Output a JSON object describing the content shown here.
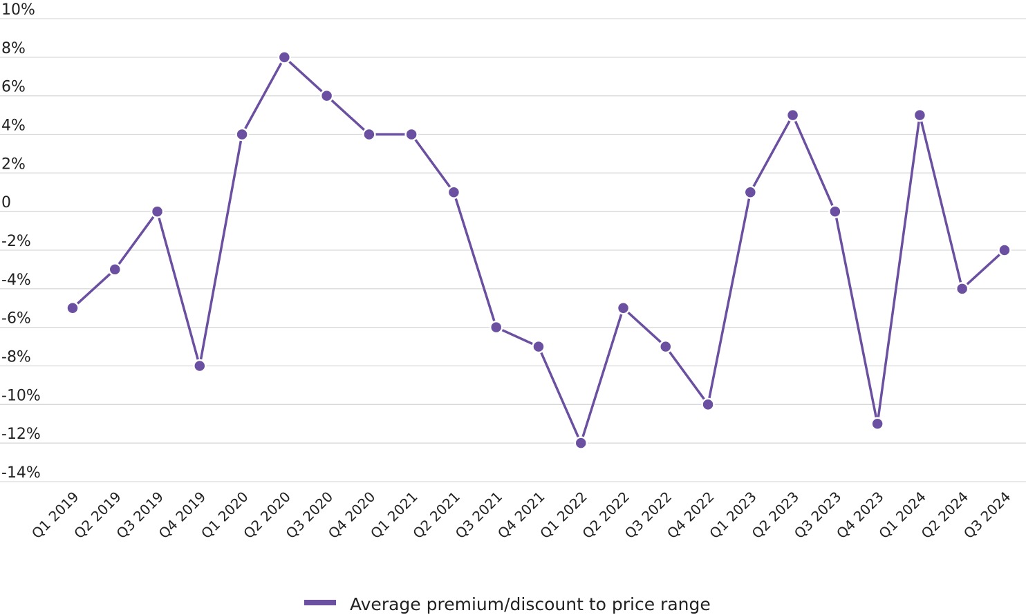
{
  "chart_data": {
    "type": "line",
    "categories": [
      "Q1 2019",
      "Q2 2019",
      "Q3 2019",
      "Q4 2019",
      "Q1 2020",
      "Q2 2020",
      "Q3 2020",
      "Q4 2020",
      "Q1 2021",
      "Q2 2021",
      "Q3 2021",
      "Q4 2021",
      "Q1 2022",
      "Q2 2022",
      "Q3 2022",
      "Q4 2022",
      "Q1 2023",
      "Q2 2023",
      "Q3 2023",
      "Q4 2023",
      "Q1 2024",
      "Q2 2024",
      "Q3 2024"
    ],
    "series": [
      {
        "name": "Average premium/discount to price range",
        "values": [
          -5,
          -3,
          0,
          -8,
          4,
          8,
          6,
          4,
          4,
          1,
          -6,
          -7,
          -12,
          -5,
          -7,
          -10,
          1,
          5,
          0,
          -11,
          5,
          -4,
          -2
        ],
        "color": "#6b4fa0"
      }
    ],
    "yticks": [
      10,
      8,
      6,
      4,
      2,
      0,
      -2,
      -4,
      -6,
      -8,
      -10,
      -12,
      -14
    ],
    "ytick_labels": [
      "10%",
      "8%",
      "6%",
      "4%",
      "2%",
      "0",
      "-2%",
      "-4%",
      "-6%",
      "-8%",
      "-10%",
      "-12%",
      "-14%"
    ],
    "ylim": [
      -14,
      10
    ],
    "grid": true,
    "legend_position": "bottom",
    "title": "",
    "xlabel": "",
    "ylabel": ""
  }
}
